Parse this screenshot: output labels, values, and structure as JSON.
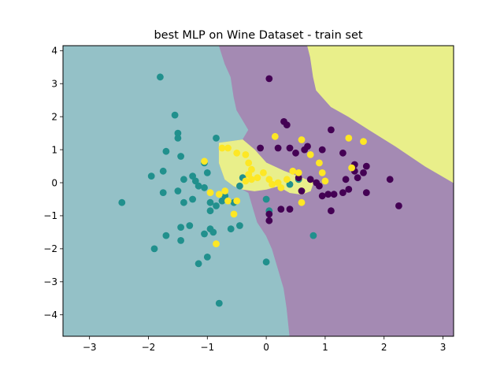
{
  "chart_data": {
    "type": "scatter",
    "title": "best MLP on Wine Dataset - train set",
    "xlabel": "",
    "ylabel": "",
    "xlim": [
      -3.45,
      3.18
    ],
    "ylim": [
      -4.65,
      4.15
    ],
    "xticks": [
      -3,
      -2,
      -1,
      0,
      1,
      2,
      3
    ],
    "yticks": [
      -4,
      -3,
      -2,
      -1,
      0,
      1,
      2,
      3,
      4
    ],
    "xtick_labels": [
      "−3",
      "−2",
      "−1",
      "0",
      "1",
      "2",
      "3"
    ],
    "ytick_labels": [
      "−4",
      "−3",
      "−2",
      "−1",
      "0",
      "1",
      "2",
      "3",
      "4"
    ],
    "grid": false,
    "legend": "none",
    "background_regions": [
      {
        "class": "teal",
        "color": "#94c1c7",
        "polygon": [
          [
            -3.45,
            4.15
          ],
          [
            -0.8,
            4.15
          ],
          [
            -0.7,
            3.6
          ],
          [
            -0.6,
            3.2
          ],
          [
            -0.55,
            2.6
          ],
          [
            -0.5,
            2.2
          ],
          [
            -0.4,
            1.9
          ],
          [
            -0.3,
            1.6
          ],
          [
            -0.4,
            1.3
          ],
          [
            -0.8,
            1.2
          ],
          [
            -0.8,
            0.6
          ],
          [
            -0.7,
            0.1
          ],
          [
            -0.55,
            -0.1
          ],
          [
            -0.4,
            -0.2
          ],
          [
            -0.3,
            -0.3
          ],
          [
            -0.25,
            -0.6
          ],
          [
            -0.2,
            -0.9
          ],
          [
            -0.15,
            -1.2
          ],
          [
            0.0,
            -1.6
          ],
          [
            0.1,
            -2.0
          ],
          [
            0.2,
            -2.6
          ],
          [
            0.3,
            -3.2
          ],
          [
            0.35,
            -3.8
          ],
          [
            0.4,
            -4.65
          ],
          [
            -3.45,
            -4.65
          ]
        ]
      },
      {
        "class": "purple",
        "color": "#a48ab3",
        "polygon": [
          [
            -0.8,
            4.15
          ],
          [
            0.7,
            4.15
          ],
          [
            0.75,
            3.8
          ],
          [
            0.8,
            3.2
          ],
          [
            0.85,
            2.8
          ],
          [
            1.1,
            2.3
          ],
          [
            1.4,
            2.0
          ],
          [
            1.75,
            1.6
          ],
          [
            2.2,
            1.1
          ],
          [
            2.7,
            0.5
          ],
          [
            3.18,
            0.0
          ],
          [
            3.18,
            -4.65
          ],
          [
            0.4,
            -4.65
          ],
          [
            0.35,
            -3.8
          ],
          [
            0.3,
            -3.2
          ],
          [
            0.2,
            -2.6
          ],
          [
            0.1,
            -2.0
          ],
          [
            0.0,
            -1.6
          ],
          [
            -0.15,
            -1.2
          ],
          [
            -0.2,
            -0.9
          ],
          [
            -0.25,
            -0.6
          ],
          [
            -0.3,
            -0.3
          ],
          [
            -0.4,
            -0.2
          ],
          [
            -0.55,
            -0.1
          ],
          [
            -0.7,
            0.1
          ],
          [
            -0.8,
            0.6
          ],
          [
            -0.8,
            1.2
          ],
          [
            -0.4,
            1.3
          ],
          [
            -0.3,
            1.6
          ],
          [
            -0.4,
            1.9
          ],
          [
            -0.5,
            2.2
          ],
          [
            -0.55,
            2.6
          ],
          [
            -0.6,
            3.2
          ],
          [
            -0.7,
            3.6
          ]
        ]
      },
      {
        "class": "yellow",
        "color": "#e9ef8a",
        "polygon": [
          [
            0.7,
            4.15
          ],
          [
            3.18,
            4.15
          ],
          [
            3.18,
            0.0
          ],
          [
            2.7,
            0.5
          ],
          [
            2.2,
            1.1
          ],
          [
            1.75,
            1.6
          ],
          [
            1.4,
            2.0
          ],
          [
            1.1,
            2.3
          ],
          [
            0.85,
            2.8
          ],
          [
            0.8,
            3.2
          ],
          [
            0.75,
            3.8
          ]
        ]
      },
      {
        "class": "yellow",
        "color": "#e9ef8a",
        "polygon": [
          [
            -0.8,
            1.2
          ],
          [
            -0.4,
            1.3
          ],
          [
            -0.2,
            1.0
          ],
          [
            0.0,
            0.6
          ],
          [
            0.3,
            0.35
          ],
          [
            0.6,
            0.15
          ],
          [
            0.8,
            0.0
          ],
          [
            0.75,
            -0.25
          ],
          [
            0.6,
            -0.35
          ],
          [
            0.4,
            -0.3
          ],
          [
            0.2,
            -0.1
          ],
          [
            0.0,
            -0.2
          ],
          [
            -0.2,
            -0.25
          ],
          [
            -0.4,
            -0.2
          ],
          [
            -0.55,
            -0.1
          ],
          [
            -0.7,
            0.1
          ],
          [
            -0.8,
            0.6
          ]
        ]
      }
    ],
    "series": [
      {
        "color": "#21908d",
        "points": [
          [
            -1.8,
            3.2
          ],
          [
            -1.55,
            2.05
          ],
          [
            -1.5,
            1.5
          ],
          [
            -1.5,
            1.35
          ],
          [
            -1.45,
            0.8
          ],
          [
            -1.7,
            0.95
          ],
          [
            -1.75,
            0.35
          ],
          [
            -1.95,
            0.2
          ],
          [
            -1.4,
            0.1
          ],
          [
            -1.25,
            0.2
          ],
          [
            -1.2,
            0.05
          ],
          [
            -1.05,
            0.6
          ],
          [
            -1.0,
            0.3
          ],
          [
            -0.85,
            1.35
          ],
          [
            -1.75,
            -0.3
          ],
          [
            -1.5,
            -0.25
          ],
          [
            -1.4,
            -0.6
          ],
          [
            -1.25,
            -0.5
          ],
          [
            -1.15,
            -0.1
          ],
          [
            -1.05,
            -0.15
          ],
          [
            -0.95,
            -0.6
          ],
          [
            -0.95,
            -0.85
          ],
          [
            -0.85,
            -0.7
          ],
          [
            -0.75,
            -0.55
          ],
          [
            -0.7,
            -0.4
          ],
          [
            -0.55,
            -0.6
          ],
          [
            -0.45,
            -0.1
          ],
          [
            -0.4,
            0.15
          ],
          [
            -1.45,
            -1.35
          ],
          [
            -1.3,
            -1.3
          ],
          [
            -1.05,
            -1.55
          ],
          [
            -0.95,
            -1.4
          ],
          [
            -0.9,
            -1.5
          ],
          [
            -0.6,
            -1.4
          ],
          [
            -0.45,
            -1.3
          ],
          [
            -1.7,
            -1.6
          ],
          [
            -1.45,
            -1.75
          ],
          [
            -1.9,
            -2.0
          ],
          [
            -1.0,
            -2.25
          ],
          [
            -1.15,
            -2.45
          ],
          [
            -0.8,
            -3.65
          ],
          [
            -2.45,
            -0.6
          ],
          [
            0.0,
            -0.5
          ],
          [
            0.05,
            -0.85
          ],
          [
            0.0,
            -2.4
          ],
          [
            0.4,
            -0.05
          ],
          [
            0.55,
            0.1
          ],
          [
            0.8,
            -1.6
          ]
        ]
      },
      {
        "color": "#440154",
        "points": [
          [
            0.05,
            3.15
          ],
          [
            0.3,
            1.85
          ],
          [
            0.35,
            1.75
          ],
          [
            0.2,
            1.05
          ],
          [
            0.4,
            1.05
          ],
          [
            0.5,
            0.9
          ],
          [
            0.65,
            1.0
          ],
          [
            0.7,
            1.1
          ],
          [
            0.95,
            1.0
          ],
          [
            1.1,
            1.6
          ],
          [
            1.3,
            0.9
          ],
          [
            -0.1,
            1.05
          ],
          [
            0.55,
            0.15
          ],
          [
            0.75,
            0.1
          ],
          [
            0.85,
            0.0
          ],
          [
            0.9,
            -0.1
          ],
          [
            1.05,
            -0.35
          ],
          [
            1.15,
            -0.35
          ],
          [
            1.3,
            -0.3
          ],
          [
            1.35,
            0.1
          ],
          [
            1.4,
            -0.2
          ],
          [
            1.5,
            0.55
          ],
          [
            1.5,
            0.35
          ],
          [
            1.65,
            0.3
          ],
          [
            1.7,
            0.5
          ],
          [
            1.7,
            -0.3
          ],
          [
            1.55,
            0.15
          ],
          [
            2.1,
            0.1
          ],
          [
            2.25,
            -0.7
          ],
          [
            0.05,
            -0.95
          ],
          [
            0.05,
            -1.15
          ],
          [
            0.25,
            -0.8
          ],
          [
            0.4,
            -0.8
          ],
          [
            0.6,
            -0.25
          ],
          [
            0.95,
            -0.4
          ],
          [
            1.1,
            -0.85
          ]
        ]
      },
      {
        "color": "#fde725",
        "points": [
          [
            -0.75,
            1.05
          ],
          [
            -0.65,
            1.05
          ],
          [
            -0.5,
            0.9
          ],
          [
            -0.35,
            0.85
          ],
          [
            -0.3,
            0.6
          ],
          [
            -0.25,
            0.4
          ],
          [
            -0.3,
            0.25
          ],
          [
            -0.25,
            0.1
          ],
          [
            -0.35,
            0.05
          ],
          [
            -0.15,
            0.15
          ],
          [
            -0.05,
            0.3
          ],
          [
            0.05,
            0.1
          ],
          [
            0.1,
            -0.05
          ],
          [
            0.2,
            0.0
          ],
          [
            0.25,
            -0.15
          ],
          [
            0.35,
            0.1
          ],
          [
            0.45,
            0.35
          ],
          [
            0.55,
            0.3
          ],
          [
            0.15,
            1.4
          ],
          [
            0.6,
            1.3
          ],
          [
            0.75,
            0.85
          ],
          [
            0.9,
            0.6
          ],
          [
            0.95,
            0.3
          ],
          [
            1.0,
            0.05
          ],
          [
            1.4,
            1.35
          ],
          [
            1.65,
            1.25
          ],
          [
            1.45,
            0.45
          ],
          [
            -1.05,
            0.65
          ],
          [
            -0.95,
            -0.3
          ],
          [
            -0.8,
            -0.35
          ],
          [
            -0.7,
            -0.25
          ],
          [
            -0.5,
            -0.55
          ],
          [
            -0.55,
            -0.95
          ],
          [
            -0.85,
            -1.85
          ],
          [
            0.6,
            -0.6
          ],
          [
            -0.65,
            -0.55
          ]
        ]
      }
    ]
  }
}
